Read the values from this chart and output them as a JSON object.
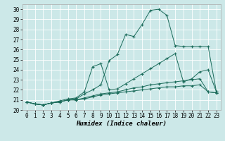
{
  "xlabel": "Humidex (Indice chaleur)",
  "ylabel": "",
  "bg_color": "#cce8e8",
  "grid_color": "#ffffff",
  "line_color": "#1a6b5a",
  "xlim": [
    -0.5,
    23.5
  ],
  "ylim": [
    20,
    30.5
  ],
  "yticks": [
    20,
    21,
    22,
    23,
    24,
    25,
    26,
    27,
    28,
    29,
    30
  ],
  "xticks": [
    0,
    1,
    2,
    3,
    4,
    5,
    6,
    7,
    8,
    9,
    10,
    11,
    12,
    13,
    14,
    15,
    16,
    17,
    18,
    19,
    20,
    21,
    22,
    23
  ],
  "series": [
    [
      20.8,
      20.6,
      20.5,
      20.7,
      20.8,
      21.0,
      21.1,
      21.6,
      22.0,
      22.5,
      24.9,
      25.5,
      27.5,
      27.3,
      28.5,
      29.9,
      30.0,
      29.4,
      26.4,
      26.3,
      26.3,
      26.3,
      26.3,
      21.8
    ],
    [
      20.8,
      20.6,
      20.5,
      20.7,
      20.9,
      21.1,
      21.2,
      21.8,
      24.3,
      24.6,
      22.0,
      22.1,
      22.6,
      23.1,
      23.6,
      24.1,
      24.6,
      25.1,
      25.6,
      22.8,
      23.1,
      23.8,
      24.0,
      21.8
    ],
    [
      20.8,
      20.6,
      20.5,
      20.7,
      20.8,
      21.0,
      21.0,
      21.2,
      21.4,
      21.6,
      21.7,
      21.8,
      22.0,
      22.2,
      22.3,
      22.5,
      22.6,
      22.7,
      22.8,
      22.9,
      23.0,
      23.1,
      21.8,
      21.7
    ],
    [
      20.8,
      20.6,
      20.5,
      20.7,
      20.8,
      21.0,
      21.0,
      21.1,
      21.3,
      21.5,
      21.6,
      21.7,
      21.8,
      21.9,
      22.0,
      22.1,
      22.2,
      22.3,
      22.3,
      22.4,
      22.4,
      22.5,
      21.8,
      21.7
    ]
  ],
  "tick_fontsize": 5.5,
  "xlabel_fontsize": 6.5
}
